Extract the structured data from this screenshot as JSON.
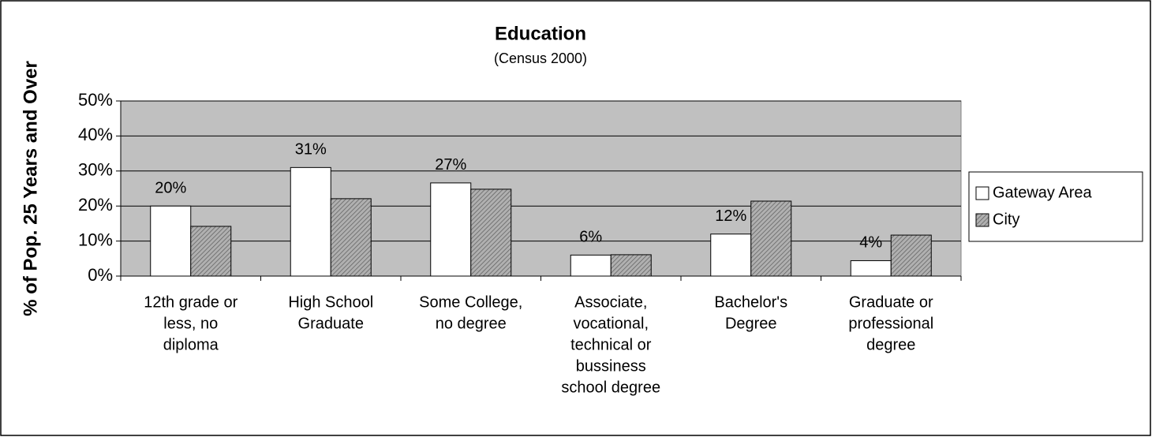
{
  "chart_data": {
    "type": "bar",
    "title": "Education",
    "subtitle": "(Census 2000)",
    "y_label": "% of Pop. 25 Years and Over",
    "categories": [
      [
        "12th grade or",
        "less, no",
        "diploma"
      ],
      [
        "High School",
        "Graduate"
      ],
      [
        "Some College,",
        "no degree"
      ],
      [
        "Associate,",
        "vocational,",
        "technical or",
        "bussiness",
        "school degree"
      ],
      [
        "Bachelor's",
        "Degree"
      ],
      [
        "Graduate or",
        "professional",
        "degree"
      ]
    ],
    "series": [
      {
        "name": "Gateway Area",
        "color": "#ffffff",
        "values": [
          20,
          31,
          26.6,
          6,
          12,
          4.4
        ],
        "value_labels": [
          "20%",
          "31%",
          "27%",
          "6%",
          "12%",
          "4%"
        ]
      },
      {
        "name": "City",
        "color": "#a0a0a0",
        "pattern": "hatch",
        "values": [
          14.2,
          22.1,
          24.8,
          6.1,
          21.4,
          11.7
        ]
      }
    ],
    "ylim": [
      0,
      50
    ],
    "yticks": [
      {
        "value": 0,
        "label": "0%"
      },
      {
        "value": 10,
        "label": "10%"
      },
      {
        "value": 20,
        "label": "20%"
      },
      {
        "value": 30,
        "label": "30%"
      },
      {
        "value": 40,
        "label": "40%"
      },
      {
        "value": 50,
        "label": "50%"
      }
    ],
    "grid": true,
    "plot_background": "#c0c0c0",
    "legend": "right"
  }
}
